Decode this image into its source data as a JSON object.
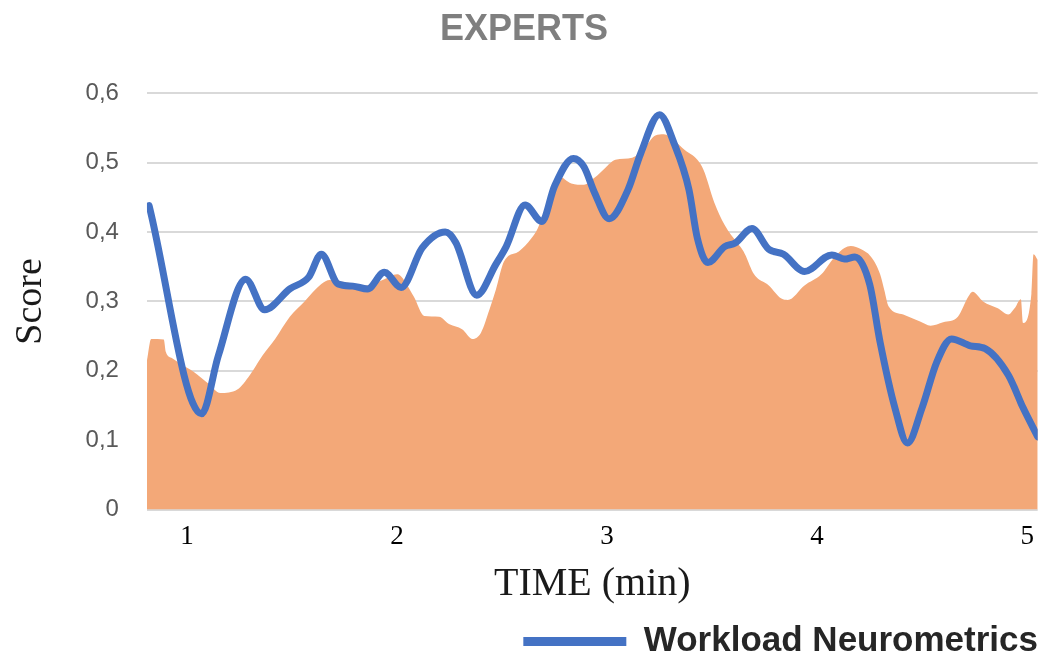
{
  "chart_data": {
    "type": "line",
    "title": "EXPERTS",
    "xlabel": "TIME (min)",
    "ylabel": "Score",
    "xlim": [
      0.81,
      5.05
    ],
    "xticks": [
      1,
      2,
      3,
      4,
      5
    ],
    "ylim": [
      0,
      0.6
    ],
    "yticks": [
      0,
      {
        "value": 0.1,
        "label": "0,1"
      },
      {
        "value": 0.2,
        "label": "0,2"
      },
      {
        "value": 0.3,
        "label": "0,3"
      },
      {
        "value": 0.4,
        "label": "0,4"
      },
      {
        "value": 0.5,
        "label": "0,5"
      },
      {
        "value": 0.6,
        "label": "0,6"
      }
    ],
    "grid": "y",
    "legend": "bottom right",
    "marker": "none",
    "line_style": "solid",
    "series": [
      {
        "type": "area",
        "color": "#f3a878",
        "x": [
          0.81,
          0.83,
          0.89,
          0.9,
          0.93,
          0.98,
          1.03,
          1.1,
          1.16,
          1.24,
          1.3,
          1.36,
          1.42,
          1.49,
          1.56,
          1.64,
          1.68,
          1.75,
          1.85,
          1.94,
          2.0,
          2.02,
          2.08,
          2.13,
          2.2,
          2.25,
          2.31,
          2.36,
          2.4,
          2.44,
          2.47,
          2.51,
          2.58,
          2.64,
          2.67,
          2.7,
          2.74,
          2.77,
          2.83,
          2.89,
          2.94,
          2.99,
          3.04,
          3.12,
          3.18,
          3.23,
          3.27,
          3.32,
          3.37,
          3.43,
          3.46,
          3.51,
          3.56,
          3.62,
          3.65,
          3.7,
          3.77,
          3.83,
          3.86,
          3.94,
          4.02,
          4.08,
          4.13,
          4.16,
          4.21,
          4.26,
          4.3,
          4.32,
          4.34,
          4.41,
          4.49,
          4.54,
          4.6,
          4.67,
          4.72,
          4.74,
          4.79,
          4.86,
          4.91,
          4.94,
          4.97,
          4.98,
          5.02,
          5.03,
          5.05
        ],
        "values": [
          0.215,
          0.246,
          0.245,
          0.227,
          0.218,
          0.208,
          0.199,
          0.182,
          0.168,
          0.173,
          0.194,
          0.222,
          0.246,
          0.278,
          0.3,
          0.325,
          0.331,
          0.328,
          0.323,
          0.332,
          0.339,
          0.336,
          0.307,
          0.279,
          0.278,
          0.267,
          0.26,
          0.246,
          0.255,
          0.288,
          0.316,
          0.358,
          0.372,
          0.391,
          0.405,
          0.429,
          0.466,
          0.48,
          0.47,
          0.468,
          0.478,
          0.492,
          0.504,
          0.507,
          0.522,
          0.539,
          0.541,
          0.532,
          0.518,
          0.504,
          0.489,
          0.443,
          0.41,
          0.384,
          0.372,
          0.339,
          0.323,
          0.304,
          0.302,
          0.323,
          0.339,
          0.363,
          0.377,
          0.38,
          0.375,
          0.363,
          0.339,
          0.316,
          0.293,
          0.281,
          0.271,
          0.265,
          0.27,
          0.278,
          0.307,
          0.314,
          0.3,
          0.29,
          0.281,
          0.29,
          0.303,
          0.269,
          0.311,
          0.368,
          0.36
        ]
      },
      {
        "name": "Workload Neurometrics",
        "color": "#4472c4",
        "x": [
          0.82,
          1.07,
          1.15,
          1.28,
          1.37,
          1.49,
          1.58,
          1.64,
          1.72,
          1.79,
          1.86,
          1.94,
          2.02,
          2.12,
          2.23,
          2.28,
          2.38,
          2.47,
          2.52,
          2.61,
          2.69,
          2.75,
          2.84,
          2.89,
          2.94,
          3.01,
          3.1,
          3.16,
          3.25,
          3.32,
          3.39,
          3.43,
          3.48,
          3.56,
          3.61,
          3.69,
          3.77,
          3.84,
          3.94,
          4.07,
          4.13,
          4.18,
          4.25,
          4.3,
          4.37,
          4.43,
          4.5,
          4.57,
          4.64,
          4.73,
          4.8,
          4.91,
          4.98,
          5.05
        ],
        "values": [
          0.438,
          0.138,
          0.222,
          0.332,
          0.288,
          0.318,
          0.335,
          0.368,
          0.325,
          0.322,
          0.318,
          0.342,
          0.32,
          0.377,
          0.4,
          0.385,
          0.309,
          0.353,
          0.379,
          0.439,
          0.415,
          0.466,
          0.506,
          0.494,
          0.457,
          0.419,
          0.461,
          0.513,
          0.569,
          0.527,
          0.461,
          0.391,
          0.356,
          0.379,
          0.384,
          0.405,
          0.375,
          0.368,
          0.343,
          0.367,
          0.361,
          0.364,
          0.325,
          0.241,
          0.147,
          0.096,
          0.147,
          0.213,
          0.246,
          0.236,
          0.232,
          0.194,
          0.147,
          0.105
        ]
      }
    ]
  }
}
